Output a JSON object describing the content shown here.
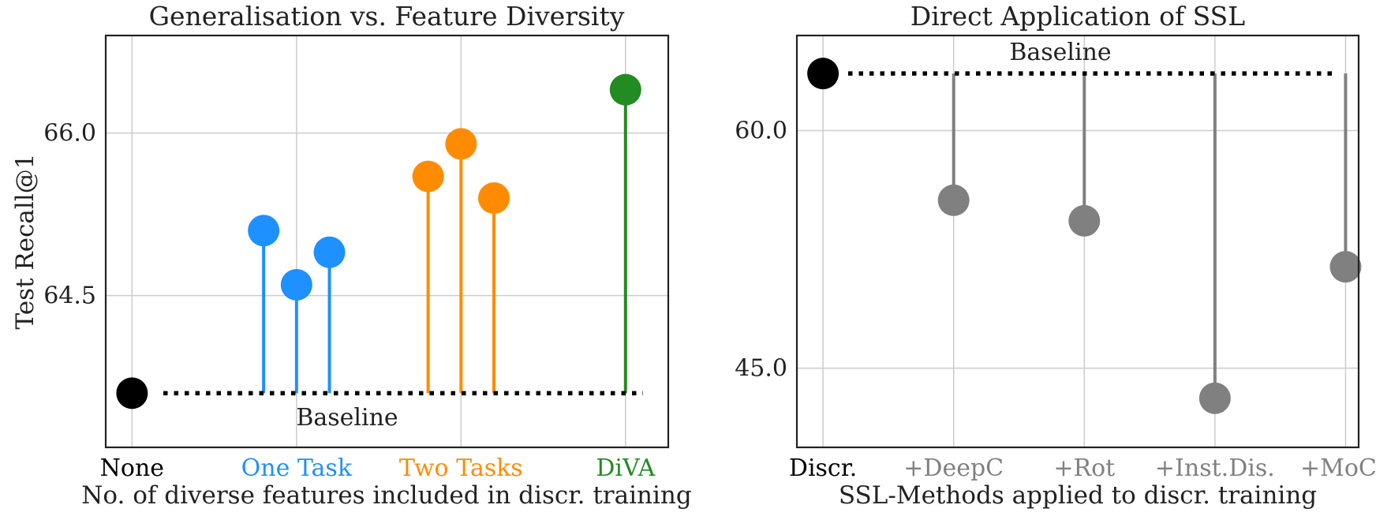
{
  "chart_data": [
    {
      "type": "lollipop",
      "title": "Generalisation vs. Feature Diversity",
      "xlabel": "No. of diverse features included in discr. training",
      "ylabel": "Test Recall@1",
      "ylim": [
        63.1,
        66.9
      ],
      "yticks": [
        "64.5",
        "66.0"
      ],
      "ytick_values": [
        64.5,
        66.0
      ],
      "baseline": {
        "value": 63.6,
        "label": "Baseline",
        "color": "#000000"
      },
      "categories": [
        {
          "label": "None",
          "x": 0,
          "color": "#000000"
        },
        {
          "label": "One Task",
          "x": 2.5,
          "color": "#1e90ff"
        },
        {
          "label": "Two Tasks",
          "x": 5,
          "color": "#ff8c00"
        },
        {
          "label": "DiVA",
          "x": 7.5,
          "color": "#228b22"
        }
      ],
      "points": [
        {
          "x": 0,
          "y": 63.6,
          "color": "#000000",
          "stem": false
        },
        {
          "x": 2,
          "y": 65.1,
          "color": "#1e90ff",
          "stem": true
        },
        {
          "x": 2.5,
          "y": 64.6,
          "color": "#1e90ff",
          "stem": true
        },
        {
          "x": 3,
          "y": 64.9,
          "color": "#1e90ff",
          "stem": true
        },
        {
          "x": 4.5,
          "y": 65.6,
          "color": "#ff8c00",
          "stem": true
        },
        {
          "x": 5,
          "y": 65.9,
          "color": "#ff8c00",
          "stem": true
        },
        {
          "x": 5.5,
          "y": 65.4,
          "color": "#ff8c00",
          "stem": true
        },
        {
          "x": 7.5,
          "y": 66.4,
          "color": "#228b22",
          "stem": true
        }
      ],
      "xlim": [
        -0.4,
        8.15
      ]
    },
    {
      "type": "lollipop",
      "title": "Direct Application of SSL",
      "xlabel": "SSL-Methods applied to discr. training",
      "ylabel": "",
      "ylim": [
        40.0,
        66.0
      ],
      "yticks": [
        "45.0",
        "60.0"
      ],
      "ytick_values": [
        45.0,
        60.0
      ],
      "baseline": {
        "value": 63.6,
        "label": "Baseline",
        "color": "#000000"
      },
      "categories": [
        {
          "label": "Discr.",
          "x": 0,
          "color": "#000000"
        },
        {
          "label": "+DeepC",
          "x": 1,
          "color": "#808080"
        },
        {
          "label": "+Rot",
          "x": 2,
          "color": "#808080"
        },
        {
          "label": "+Inst.Dis.",
          "x": 3,
          "color": "#808080"
        },
        {
          "label": "+MoCo",
          "x": 4,
          "color": "#808080"
        }
      ],
      "points": [
        {
          "x": 0,
          "y": 63.6,
          "color": "#000000",
          "stem": false
        },
        {
          "x": 1,
          "y": 55.6,
          "color": "#808080",
          "stem": true
        },
        {
          "x": 2,
          "y": 54.3,
          "color": "#808080",
          "stem": true
        },
        {
          "x": 3,
          "y": 43.1,
          "color": "#808080",
          "stem": true
        },
        {
          "x": 4,
          "y": 51.4,
          "color": "#808080",
          "stem": true
        }
      ],
      "xlim": [
        -0.2,
        4.1
      ]
    }
  ]
}
